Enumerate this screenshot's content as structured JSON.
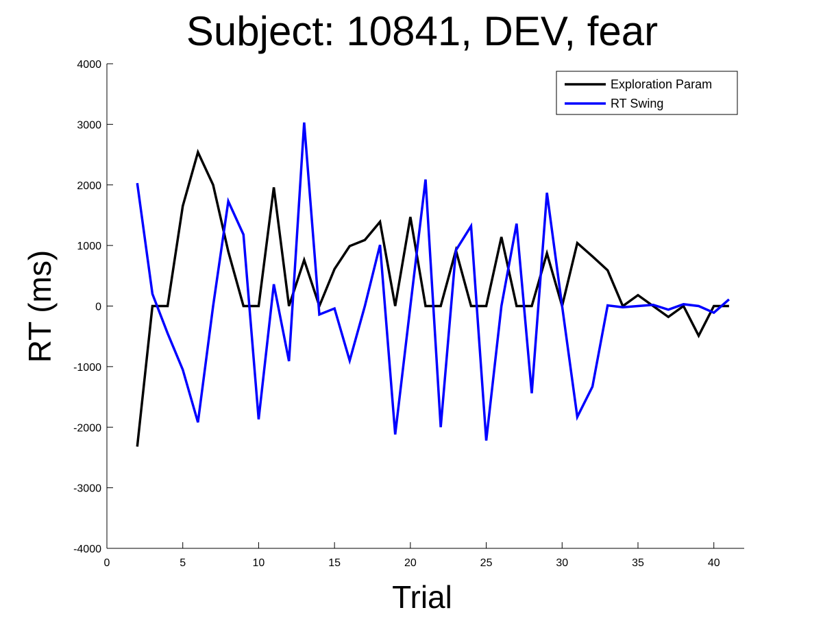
{
  "chart_data": {
    "type": "line",
    "title": "Subject: 10841, DEV, fear",
    "xlabel": "Trial",
    "ylabel": "RT (ms)",
    "xlim": [
      0,
      42
    ],
    "ylim": [
      -4000,
      4000
    ],
    "xticks": [
      0,
      5,
      10,
      15,
      20,
      25,
      30,
      35,
      40
    ],
    "yticks": [
      -4000,
      -3000,
      -2000,
      -1000,
      0,
      1000,
      2000,
      3000,
      4000
    ],
    "grid": false,
    "legend_position": "top-right",
    "x": [
      2,
      3,
      4,
      5,
      6,
      7,
      8,
      9,
      10,
      11,
      12,
      13,
      14,
      15,
      16,
      17,
      18,
      19,
      20,
      21,
      22,
      23,
      24,
      25,
      26,
      27,
      28,
      29,
      30,
      31,
      32,
      33,
      34,
      35,
      36,
      37,
      38,
      39,
      40,
      41
    ],
    "series": [
      {
        "name": "Exploration Param",
        "color": "#000000",
        "values": [
          -2320,
          0,
          0,
          1650,
          2540,
          2000,
          900,
          0,
          0,
          1960,
          0,
          760,
          0,
          610,
          990,
          1090,
          1390,
          0,
          1470,
          0,
          0,
          920,
          0,
          0,
          1140,
          0,
          0,
          870,
          0,
          1040,
          820,
          590,
          0,
          180,
          0,
          -180,
          0,
          -490,
          0,
          0
        ]
      },
      {
        "name": "RT Swing",
        "color": "#0000ff",
        "values": [
          2030,
          200,
          -450,
          -1050,
          -1920,
          0,
          1730,
          1180,
          -1870,
          360,
          -910,
          3030,
          -140,
          -40,
          -900,
          0,
          1010,
          -2120,
          0,
          2090,
          -2000,
          920,
          1320,
          -2220,
          0,
          1360,
          -1440,
          1870,
          0,
          -1830,
          -1330,
          10,
          -20,
          0,
          20,
          -60,
          30,
          0,
          -110,
          110
        ]
      }
    ]
  }
}
